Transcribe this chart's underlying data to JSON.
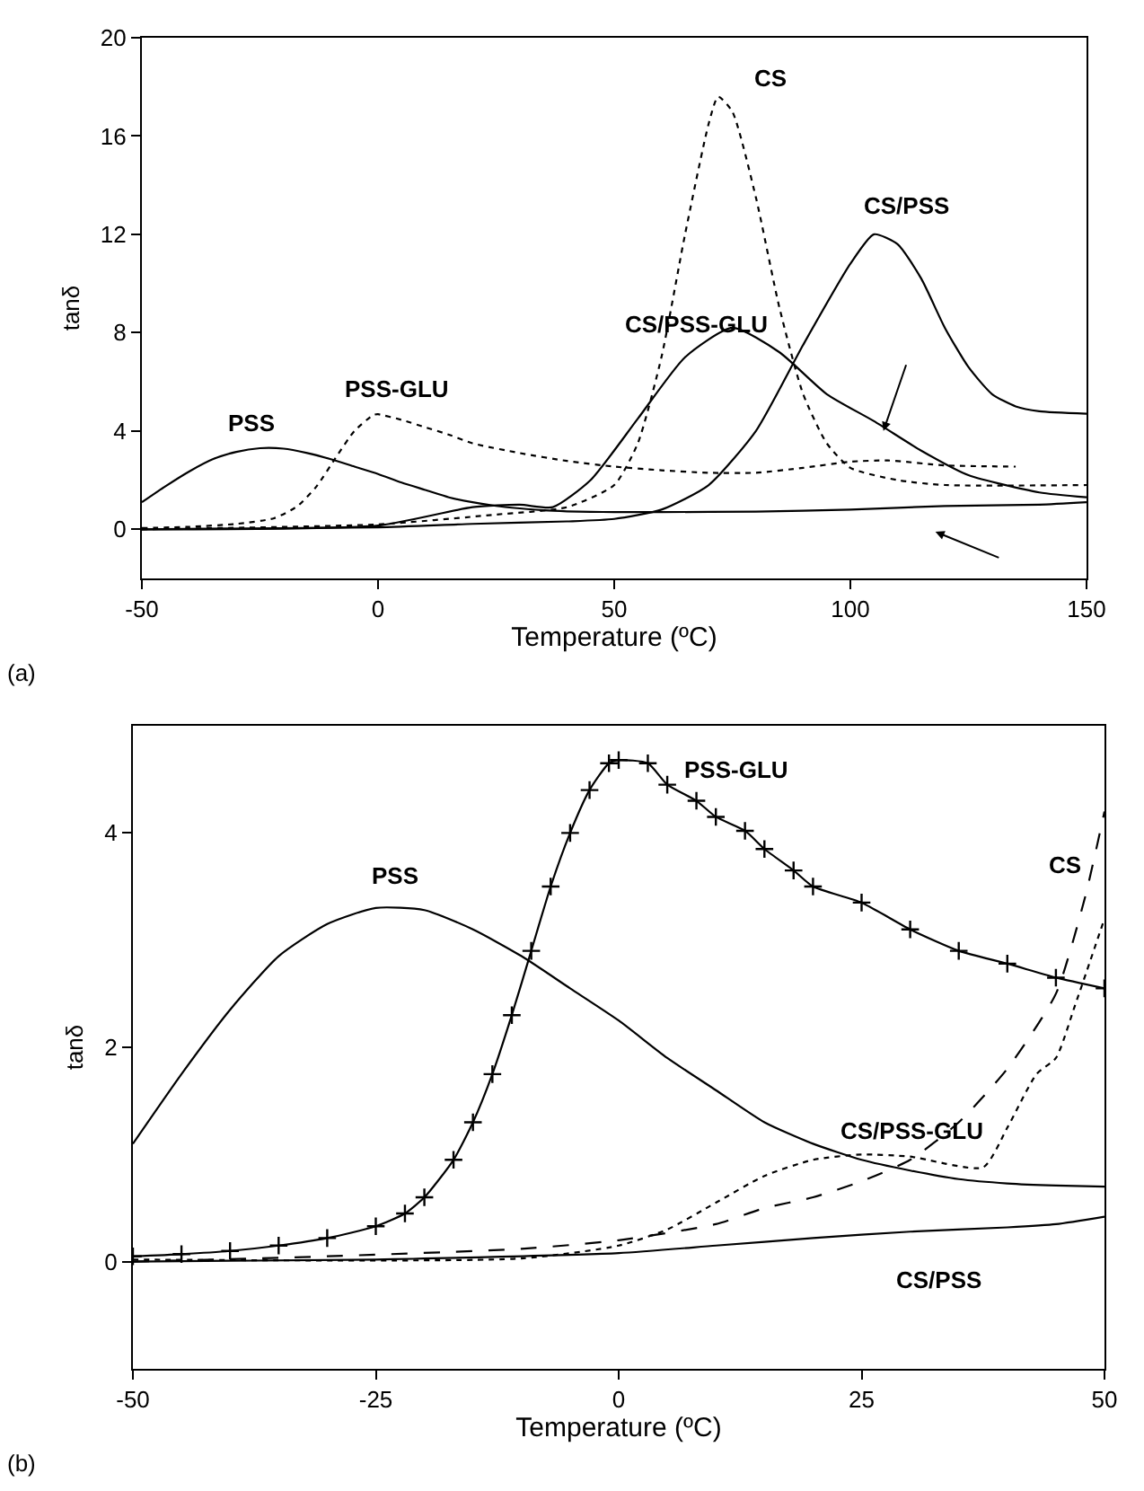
{
  "chart_data": [
    {
      "type": "line",
      "xlabel": "Temperature (ºC)",
      "ylabel": "tanδ",
      "xlim": [
        -50,
        150
      ],
      "ylim": [
        -2,
        20
      ],
      "xticks": [
        -50,
        0,
        50,
        100,
        150
      ],
      "yticks": [
        0,
        4,
        8,
        12,
        16,
        20
      ],
      "annotations": [
        "(a)"
      ],
      "series": [
        {
          "name": "PSS",
          "color": "#000000",
          "line_style": "solid",
          "x": [
            -50,
            -45,
            -40,
            -35,
            -30,
            -25,
            -20,
            -15,
            -10,
            -5,
            0,
            5,
            10,
            15,
            20,
            25,
            30,
            35,
            40,
            45,
            50,
            60,
            80,
            100,
            120,
            140,
            150
          ],
          "values": [
            1.1,
            1.75,
            2.35,
            2.85,
            3.15,
            3.3,
            3.28,
            3.1,
            2.85,
            2.55,
            2.25,
            1.9,
            1.6,
            1.3,
            1.1,
            0.95,
            0.85,
            0.77,
            0.73,
            0.71,
            0.7,
            0.7,
            0.72,
            0.8,
            0.95,
            1.0,
            1.1
          ]
        },
        {
          "name": "PSS-GLU",
          "color": "#000000",
          "line_style": "dotted",
          "x": [
            -50,
            -40,
            -30,
            -22,
            -17,
            -13,
            -9,
            -5,
            -1,
            0,
            5,
            10,
            15,
            20,
            30,
            40,
            50,
            60,
            70,
            80,
            90,
            100,
            108,
            120,
            135
          ],
          "values": [
            0.05,
            0.1,
            0.22,
            0.45,
            0.95,
            1.75,
            2.9,
            4.0,
            4.65,
            4.68,
            4.45,
            4.15,
            3.85,
            3.5,
            3.1,
            2.78,
            2.55,
            2.4,
            2.3,
            2.3,
            2.5,
            2.75,
            2.8,
            2.6,
            2.55
          ]
        },
        {
          "name": "CS",
          "color": "#000000",
          "line_style": "dotted",
          "x": [
            -50,
            0,
            25,
            40,
            50,
            55,
            60,
            65,
            70,
            72,
            75,
            80,
            85,
            90,
            95,
            100,
            110,
            120,
            150
          ],
          "values": [
            0,
            0.2,
            0.6,
            0.9,
            1.8,
            3.5,
            7,
            12,
            16.5,
            17.6,
            17,
            13.5,
            9,
            5.5,
            3.5,
            2.5,
            2.0,
            1.8,
            1.8
          ]
        },
        {
          "name": "CS/PSS-GLU",
          "color": "#000000",
          "line_style": "solid",
          "x": [
            -50,
            0,
            20,
            30,
            37,
            45,
            55,
            65,
            75,
            85,
            95,
            105,
            115,
            125,
            140,
            150
          ],
          "values": [
            0,
            0.15,
            0.9,
            1.0,
            0.9,
            2.0,
            4.5,
            7.0,
            8.2,
            7.2,
            5.5,
            4.4,
            3.2,
            2.2,
            1.5,
            1.3
          ]
        },
        {
          "name": "CS/PSS",
          "color": "#000000",
          "line_style": "solid",
          "x": [
            -50,
            0,
            20,
            40,
            50,
            60,
            70,
            80,
            90,
            100,
            105,
            110,
            115,
            120,
            125,
            130,
            135,
            140,
            150
          ],
          "values": [
            0,
            0.08,
            0.22,
            0.32,
            0.42,
            0.8,
            1.8,
            4.0,
            7.5,
            10.8,
            12,
            11.6,
            10.2,
            8.2,
            6.6,
            5.5,
            5.0,
            4.8,
            4.7
          ]
        }
      ]
    },
    {
      "type": "line",
      "xlabel": "Temperature (ºC)",
      "ylabel": "tanδ",
      "xlim": [
        -50,
        50
      ],
      "ylim": [
        -1,
        5
      ],
      "xticks": [
        -50,
        -25,
        0,
        25,
        50
      ],
      "yticks": [
        0,
        2,
        4
      ],
      "annotations": [
        "(b)"
      ],
      "series": [
        {
          "name": "PSS",
          "color": "#000000",
          "line_style": "solid",
          "x": [
            -50,
            -45,
            -40,
            -35,
            -30,
            -25,
            -20,
            -15,
            -10,
            -5,
            0,
            5,
            10,
            15,
            20,
            25,
            30,
            35,
            40,
            45,
            50
          ],
          "values": [
            1.1,
            1.75,
            2.35,
            2.85,
            3.15,
            3.3,
            3.28,
            3.1,
            2.85,
            2.55,
            2.25,
            1.9,
            1.6,
            1.3,
            1.1,
            0.95,
            0.85,
            0.77,
            0.73,
            0.71,
            0.7
          ]
        },
        {
          "name": "PSS-GLU",
          "color": "#000000",
          "line_style": "solid",
          "marker": "cross",
          "x": [
            -50,
            -45,
            -40,
            -35,
            -30,
            -25,
            -22,
            -20,
            -17,
            -15,
            -13,
            -11,
            -9,
            -7,
            -5,
            -3,
            -1,
            0,
            3,
            5,
            8,
            10,
            13,
            15,
            18,
            20,
            25,
            30,
            35,
            40,
            45,
            50
          ],
          "values": [
            0.05,
            0.07,
            0.1,
            0.15,
            0.22,
            0.33,
            0.45,
            0.6,
            0.95,
            1.3,
            1.75,
            2.3,
            2.9,
            3.5,
            4.0,
            4.4,
            4.65,
            4.68,
            4.65,
            4.45,
            4.3,
            4.15,
            4.02,
            3.85,
            3.65,
            3.5,
            3.35,
            3.1,
            2.9,
            2.78,
            2.65,
            2.55
          ]
        },
        {
          "name": "CS",
          "color": "#000000",
          "line_style": "dashed",
          "x": [
            -50,
            -30,
            -10,
            0,
            10,
            15,
            20,
            25,
            30,
            35,
            40,
            45,
            48,
            50
          ],
          "values": [
            0,
            0.05,
            0.12,
            0.2,
            0.35,
            0.5,
            0.6,
            0.75,
            0.95,
            1.3,
            1.8,
            2.5,
            3.4,
            4.2
          ]
        },
        {
          "name": "CS/PSS-GLU",
          "color": "#000000",
          "line_style": "dotted",
          "x": [
            -50,
            -10,
            0,
            5,
            10,
            15,
            20,
            25,
            30,
            37.5,
            40,
            43,
            45,
            47,
            50
          ],
          "values": [
            0.02,
            0.03,
            0.15,
            0.3,
            0.55,
            0.8,
            0.95,
            1.0,
            0.98,
            0.88,
            1.25,
            1.75,
            1.9,
            2.4,
            3.2
          ]
        },
        {
          "name": "CS/PSS",
          "color": "#000000",
          "line_style": "solid",
          "x": [
            -50,
            -25,
            0,
            10,
            20,
            30,
            40,
            45,
            50
          ],
          "values": [
            0,
            0.02,
            0.08,
            0.15,
            0.22,
            0.28,
            0.32,
            0.35,
            0.42
          ]
        }
      ]
    }
  ]
}
